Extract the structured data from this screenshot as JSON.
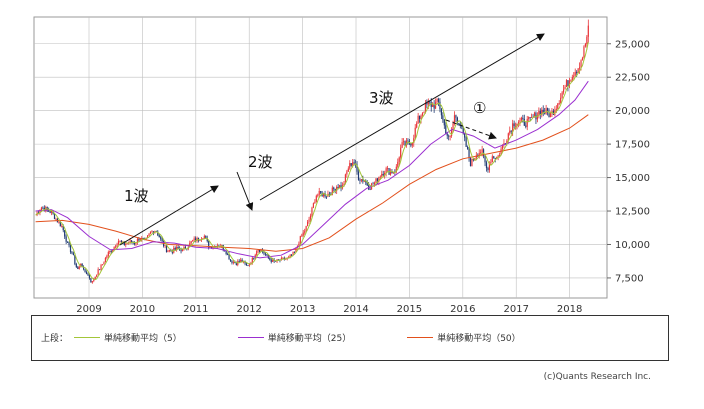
{
  "chart_data": {
    "type": "candlestick",
    "title": "",
    "xlabel": "",
    "ylabel": "",
    "x_ticks": [
      "2009",
      "2010",
      "2011",
      "2012",
      "2013",
      "2014",
      "2015",
      "2016",
      "2017",
      "2018"
    ],
    "y_ticks": [
      "7,500",
      "10,000",
      "12,500",
      "15,000",
      "17,500",
      "20,000",
      "22,500",
      "25,000"
    ],
    "x_range": [
      2007.97,
      2018.7
    ],
    "ylim": [
      6000,
      27000
    ],
    "grid": true,
    "colors": {
      "up": "#e8363a",
      "down": "#1f3a73",
      "ma5": "#a3c639",
      "ma25": "#9b2fd0",
      "ma50": "#e2501c",
      "grid": "#bfbfbf"
    },
    "price": [
      [
        2008.0,
        12200
      ],
      [
        2008.1,
        12800
      ],
      [
        2008.2,
        12600
      ],
      [
        2008.3,
        12400
      ],
      [
        2008.4,
        11800
      ],
      [
        2008.5,
        11300
      ],
      [
        2008.6,
        10000
      ],
      [
        2008.7,
        9200
      ],
      [
        2008.75,
        8400
      ],
      [
        2008.8,
        8100
      ],
      [
        2008.85,
        8700
      ],
      [
        2008.9,
        8000
      ],
      [
        2008.95,
        7900
      ],
      [
        2009.0,
        7600
      ],
      [
        2009.05,
        7100
      ],
      [
        2009.15,
        7900
      ],
      [
        2009.25,
        8500
      ],
      [
        2009.35,
        9300
      ],
      [
        2009.45,
        9700
      ],
      [
        2009.55,
        10300
      ],
      [
        2009.65,
        10000
      ],
      [
        2009.75,
        10200
      ],
      [
        2009.85,
        10100
      ],
      [
        2009.95,
        10500
      ],
      [
        2010.05,
        10200
      ],
      [
        2010.15,
        10900
      ],
      [
        2010.25,
        11100
      ],
      [
        2010.35,
        10300
      ],
      [
        2010.45,
        9600
      ],
      [
        2010.55,
        9500
      ],
      [
        2010.65,
        9700
      ],
      [
        2010.75,
        9600
      ],
      [
        2010.85,
        9900
      ],
      [
        2010.95,
        10300
      ],
      [
        2011.05,
        10400
      ],
      [
        2011.15,
        10700
      ],
      [
        2011.25,
        9800
      ],
      [
        2011.35,
        9900
      ],
      [
        2011.45,
        10000
      ],
      [
        2011.55,
        9600
      ],
      [
        2011.65,
        8800
      ],
      [
        2011.75,
        8600
      ],
      [
        2011.85,
        8800
      ],
      [
        2011.95,
        8400
      ],
      [
        2012.05,
        8800
      ],
      [
        2012.15,
        9700
      ],
      [
        2012.25,
        9500
      ],
      [
        2012.35,
        9000
      ],
      [
        2012.45,
        8700
      ],
      [
        2012.55,
        8800
      ],
      [
        2012.65,
        8900
      ],
      [
        2012.75,
        9000
      ],
      [
        2012.85,
        9400
      ],
      [
        2012.95,
        10400
      ],
      [
        2013.05,
        11100
      ],
      [
        2013.15,
        12200
      ],
      [
        2013.25,
        13700
      ],
      [
        2013.35,
        13800
      ],
      [
        2013.45,
        13700
      ],
      [
        2013.55,
        14000
      ],
      [
        2013.65,
        14400
      ],
      [
        2013.75,
        14300
      ],
      [
        2013.85,
        15700
      ],
      [
        2013.95,
        16300
      ],
      [
        2014.05,
        15000
      ],
      [
        2014.15,
        14800
      ],
      [
        2014.25,
        14300
      ],
      [
        2014.35,
        14600
      ],
      [
        2014.45,
        15200
      ],
      [
        2014.55,
        15600
      ],
      [
        2014.65,
        15400
      ],
      [
        2014.75,
        15600
      ],
      [
        2014.85,
        17400
      ],
      [
        2014.95,
        17500
      ],
      [
        2015.05,
        17700
      ],
      [
        2015.15,
        19200
      ],
      [
        2015.25,
        20000
      ],
      [
        2015.35,
        20500
      ],
      [
        2015.45,
        20400
      ],
      [
        2015.55,
        20600
      ],
      [
        2015.65,
        18900
      ],
      [
        2015.75,
        17700
      ],
      [
        2015.85,
        19700
      ],
      [
        2015.95,
        19000
      ],
      [
        2016.05,
        17500
      ],
      [
        2016.15,
        16000
      ],
      [
        2016.25,
        16800
      ],
      [
        2016.35,
        17000
      ],
      [
        2016.45,
        15600
      ],
      [
        2016.55,
        16600
      ],
      [
        2016.65,
        16500
      ],
      [
        2016.75,
        17400
      ],
      [
        2016.85,
        18300
      ],
      [
        2016.95,
        19100
      ],
      [
        2017.05,
        19200
      ],
      [
        2017.15,
        19100
      ],
      [
        2017.25,
        19200
      ],
      [
        2017.35,
        19600
      ],
      [
        2017.45,
        20000
      ],
      [
        2017.55,
        19900
      ],
      [
        2017.65,
        19700
      ],
      [
        2017.75,
        20400
      ],
      [
        2017.85,
        21300
      ],
      [
        2017.95,
        22000
      ],
      [
        2018.05,
        22800
      ],
      [
        2018.15,
        23200
      ],
      [
        2018.25,
        24200
      ],
      [
        2018.35,
        26000
      ]
    ],
    "ma25": [
      [
        2008.0,
        12500
      ],
      [
        2008.3,
        12600
      ],
      [
        2008.6,
        12000
      ],
      [
        2009.0,
        10600
      ],
      [
        2009.4,
        9600
      ],
      [
        2009.8,
        9700
      ],
      [
        2010.2,
        10200
      ],
      [
        2010.6,
        10100
      ],
      [
        2011.0,
        9800
      ],
      [
        2011.4,
        9700
      ],
      [
        2011.8,
        9300
      ],
      [
        2012.2,
        9000
      ],
      [
        2012.6,
        9200
      ],
      [
        2013.0,
        10000
      ],
      [
        2013.4,
        11500
      ],
      [
        2013.8,
        13000
      ],
      [
        2014.2,
        14200
      ],
      [
        2014.6,
        14800
      ],
      [
        2015.0,
        15900
      ],
      [
        2015.4,
        17500
      ],
      [
        2015.8,
        18600
      ],
      [
        2016.2,
        18100
      ],
      [
        2016.6,
        17200
      ],
      [
        2017.0,
        17800
      ],
      [
        2017.4,
        18600
      ],
      [
        2017.8,
        19700
      ],
      [
        2018.1,
        20800
      ],
      [
        2018.35,
        22200
      ]
    ],
    "ma50": [
      [
        2008.0,
        11700
      ],
      [
        2008.5,
        11800
      ],
      [
        2009.0,
        11500
      ],
      [
        2009.5,
        11000
      ],
      [
        2010.0,
        10400
      ],
      [
        2010.5,
        10000
      ],
      [
        2011.0,
        9900
      ],
      [
        2011.5,
        9800
      ],
      [
        2012.0,
        9700
      ],
      [
        2012.5,
        9500
      ],
      [
        2013.0,
        9700
      ],
      [
        2013.5,
        10500
      ],
      [
        2014.0,
        11900
      ],
      [
        2014.5,
        13100
      ],
      [
        2015.0,
        14500
      ],
      [
        2015.5,
        15600
      ],
      [
        2016.0,
        16400
      ],
      [
        2016.5,
        16800
      ],
      [
        2017.0,
        17200
      ],
      [
        2017.5,
        17800
      ],
      [
        2018.0,
        18700
      ],
      [
        2018.35,
        19700
      ]
    ],
    "annotations": [
      {
        "text": "1波"
      },
      {
        "text": "2波"
      },
      {
        "text": "3波"
      },
      {
        "text": "①"
      }
    ]
  },
  "legend": {
    "prefix": "上段：",
    "items": [
      {
        "label": "単純移動平均（5）",
        "color": "#a3c639"
      },
      {
        "label": "単純移動平均（25）",
        "color": "#9b2fd0"
      },
      {
        "label": "単純移動平均（50）",
        "color": "#e2501c"
      }
    ]
  },
  "copyright": "(c)Quants Research Inc."
}
